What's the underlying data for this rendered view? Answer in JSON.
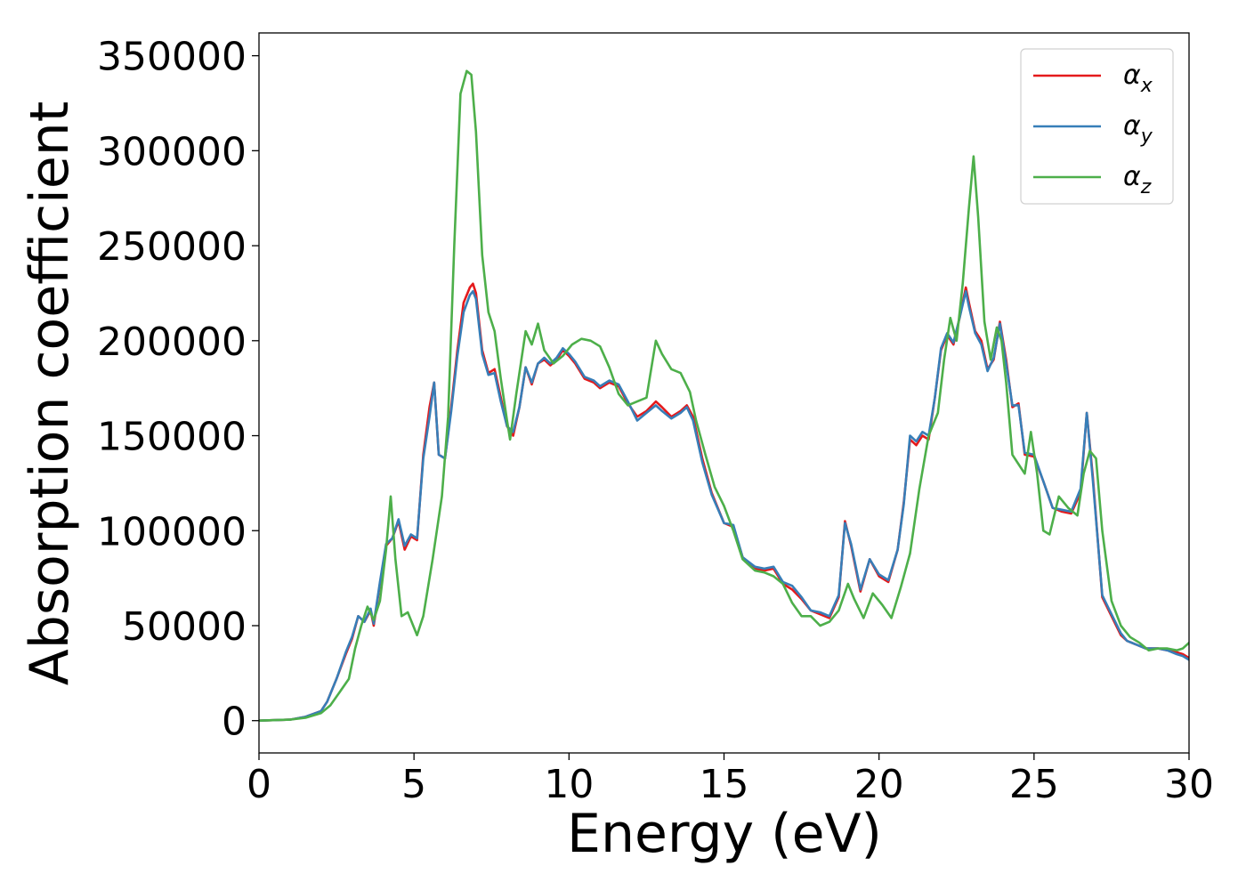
{
  "chart_data": {
    "type": "line",
    "xlabel": "Energy (eV)",
    "ylabel": "Absorption coefficient",
    "xlim": [
      0,
      30
    ],
    "ylim": [
      -17000,
      362000
    ],
    "x_ticks": [
      0,
      5,
      10,
      15,
      20,
      25,
      30
    ],
    "y_ticks": [
      0,
      50000,
      100000,
      150000,
      200000,
      250000,
      300000,
      350000
    ],
    "grid": false,
    "legend_position": "top-right",
    "series": [
      {
        "name": "α",
        "subscript": "x",
        "color": "#e41a1c",
        "x": [
          0,
          1,
          1.5,
          2,
          2.2,
          2.5,
          2.8,
          3,
          3.2,
          3.4,
          3.6,
          3.7,
          3.9,
          4.1,
          4.3,
          4.5,
          4.7,
          4.9,
          5.1,
          5.3,
          5.5,
          5.65,
          5.8,
          6,
          6.2,
          6.4,
          6.6,
          6.8,
          6.9,
          7,
          7.2,
          7.4,
          7.6,
          7.8,
          8,
          8.2,
          8.4,
          8.6,
          8.8,
          9,
          9.2,
          9.4,
          9.6,
          9.8,
          10,
          10.2,
          10.5,
          10.8,
          11,
          11.3,
          11.6,
          11.9,
          12.2,
          12.5,
          12.8,
          13,
          13.3,
          13.6,
          13.8,
          14,
          14.3,
          14.6,
          15,
          15.3,
          15.6,
          16,
          16.3,
          16.6,
          16.9,
          17.2,
          17.5,
          17.8,
          18.1,
          18.4,
          18.7,
          18.9,
          19.1,
          19.4,
          19.7,
          20,
          20.3,
          20.6,
          20.8,
          21,
          21.2,
          21.4,
          21.6,
          21.8,
          22,
          22.2,
          22.4,
          22.6,
          22.8,
          22.9,
          23.1,
          23.3,
          23.5,
          23.7,
          23.9,
          24.1,
          24.3,
          24.5,
          24.7,
          25,
          25.3,
          25.6,
          25.9,
          26.2,
          26.5,
          26.7,
          26.9,
          27.2,
          27.5,
          27.8,
          28,
          28.3,
          28.6,
          29,
          29.3,
          29.6,
          29.8,
          30
        ],
        "y": [
          0,
          500,
          2000,
          5000,
          10000,
          22000,
          35000,
          43000,
          55000,
          52000,
          58000,
          50000,
          72000,
          92000,
          96000,
          105000,
          90000,
          97000,
          95000,
          140000,
          165000,
          178000,
          140000,
          138000,
          165000,
          195000,
          220000,
          228000,
          230000,
          225000,
          195000,
          183000,
          185000,
          170000,
          155000,
          150000,
          165000,
          186000,
          177000,
          188000,
          190000,
          187000,
          190000,
          195000,
          192000,
          188000,
          180000,
          178000,
          175000,
          178000,
          176000,
          167000,
          160000,
          163000,
          168000,
          165000,
          160000,
          163000,
          166000,
          160000,
          138000,
          120000,
          104000,
          102000,
          86000,
          80000,
          79000,
          80000,
          72000,
          69000,
          64000,
          58000,
          56000,
          54000,
          65000,
          105000,
          92000,
          68000,
          85000,
          76000,
          73000,
          90000,
          115000,
          148000,
          145000,
          150000,
          148000,
          170000,
          195000,
          203000,
          198000,
          212000,
          228000,
          220000,
          205000,
          200000,
          185000,
          190000,
          210000,
          190000,
          165000,
          167000,
          140000,
          139000,
          126000,
          112000,
          110000,
          109000,
          120000,
          162000,
          128000,
          65000,
          55000,
          45000,
          42000,
          40000,
          38000,
          38000,
          37000,
          36000,
          35000,
          33000
        ],
        "linewidth": 2
      },
      {
        "name": "α",
        "subscript": "y",
        "color": "#377eb8",
        "x": [
          0,
          1,
          1.5,
          2,
          2.2,
          2.5,
          2.8,
          3,
          3.2,
          3.4,
          3.6,
          3.7,
          3.9,
          4.1,
          4.3,
          4.5,
          4.7,
          4.9,
          5.1,
          5.3,
          5.5,
          5.65,
          5.8,
          6,
          6.2,
          6.4,
          6.6,
          6.8,
          6.9,
          7,
          7.2,
          7.4,
          7.6,
          7.8,
          8,
          8.2,
          8.4,
          8.6,
          8.8,
          9,
          9.2,
          9.4,
          9.6,
          9.8,
          10,
          10.2,
          10.5,
          10.8,
          11,
          11.3,
          11.6,
          11.9,
          12.2,
          12.5,
          12.8,
          13,
          13.3,
          13.6,
          13.8,
          14,
          14.3,
          14.6,
          15,
          15.3,
          15.6,
          16,
          16.3,
          16.6,
          16.9,
          17.2,
          17.5,
          17.8,
          18.1,
          18.4,
          18.7,
          18.9,
          19.1,
          19.4,
          19.7,
          20,
          20.3,
          20.6,
          20.8,
          21,
          21.2,
          21.4,
          21.6,
          21.8,
          22,
          22.2,
          22.4,
          22.6,
          22.8,
          22.9,
          23.1,
          23.3,
          23.5,
          23.7,
          23.9,
          24.1,
          24.3,
          24.5,
          24.7,
          25,
          25.3,
          25.6,
          25.9,
          26.2,
          26.5,
          26.7,
          26.9,
          27.2,
          27.5,
          27.8,
          28,
          28.3,
          28.6,
          29,
          29.3,
          29.6,
          29.8,
          30
        ],
        "y": [
          0,
          500,
          2000,
          5000,
          10000,
          22000,
          36000,
          44000,
          55000,
          52000,
          59000,
          51000,
          73000,
          93000,
          96000,
          106000,
          92000,
          98000,
          96000,
          138000,
          160000,
          178000,
          140000,
          138000,
          163000,
          192000,
          215000,
          224000,
          226000,
          222000,
          193000,
          182000,
          183000,
          168000,
          155000,
          152000,
          165000,
          186000,
          178000,
          188000,
          191000,
          188000,
          191000,
          196000,
          193000,
          189000,
          181000,
          179000,
          176000,
          179000,
          177000,
          168000,
          158000,
          162000,
          166000,
          163000,
          159000,
          162000,
          165000,
          158000,
          136000,
          119000,
          104000,
          103000,
          86000,
          81000,
          80000,
          81000,
          73000,
          71000,
          65000,
          58000,
          57000,
          55000,
          66000,
          104000,
          93000,
          69000,
          85000,
          77000,
          74000,
          90000,
          114000,
          150000,
          147000,
          152000,
          150000,
          170000,
          196000,
          204000,
          199000,
          212000,
          226000,
          218000,
          204000,
          198000,
          184000,
          191000,
          209000,
          188000,
          166000,
          166000,
          141000,
          140000,
          126000,
          112000,
          111000,
          110000,
          122000,
          162000,
          126000,
          66000,
          56000,
          46000,
          42000,
          40000,
          38000,
          38000,
          37000,
          35000,
          34000,
          32000
        ],
        "linewidth": 2
      },
      {
        "name": "α",
        "subscript": "z",
        "color": "#4daf4a",
        "x": [
          0,
          1,
          1.5,
          2,
          2.3,
          2.6,
          2.9,
          3.1,
          3.3,
          3.5,
          3.7,
          3.9,
          4.1,
          4.25,
          4.4,
          4.6,
          4.8,
          5.1,
          5.3,
          5.6,
          5.9,
          6.1,
          6.3,
          6.5,
          6.7,
          6.85,
          7,
          7.2,
          7.4,
          7.6,
          7.8,
          8,
          8.1,
          8.3,
          8.6,
          8.8,
          9,
          9.2,
          9.5,
          9.8,
          10.1,
          10.4,
          10.7,
          11,
          11.3,
          11.6,
          11.9,
          12.2,
          12.5,
          12.8,
          13,
          13.3,
          13.6,
          13.9,
          14.1,
          14.4,
          14.7,
          15,
          15.3,
          15.6,
          16,
          16.3,
          16.6,
          16.9,
          17.2,
          17.5,
          17.8,
          18.1,
          18.4,
          18.7,
          19,
          19.2,
          19.5,
          19.8,
          20.1,
          20.4,
          20.7,
          21,
          21.3,
          21.6,
          21.9,
          22.1,
          22.3,
          22.5,
          22.7,
          22.9,
          23.05,
          23.2,
          23.4,
          23.6,
          23.8,
          23.95,
          24.1,
          24.3,
          24.5,
          24.7,
          24.9,
          25.1,
          25.3,
          25.5,
          25.8,
          26.1,
          26.4,
          26.6,
          26.8,
          27,
          27.2,
          27.5,
          27.8,
          28.1,
          28.4,
          28.7,
          29,
          29.3,
          29.6,
          29.8,
          30
        ],
        "y": [
          0,
          500,
          1500,
          4000,
          8000,
          15000,
          22000,
          38000,
          50000,
          60000,
          53000,
          63000,
          90000,
          118000,
          85000,
          55000,
          57000,
          45000,
          55000,
          85000,
          118000,
          160000,
          250000,
          330000,
          342000,
          340000,
          310000,
          245000,
          215000,
          205000,
          180000,
          158000,
          148000,
          172000,
          205000,
          198000,
          209000,
          195000,
          188000,
          192000,
          198000,
          201000,
          200000,
          197000,
          186000,
          172000,
          166000,
          168000,
          170000,
          200000,
          193000,
          185000,
          183000,
          173000,
          158000,
          140000,
          123000,
          113000,
          100000,
          85000,
          79000,
          78000,
          76000,
          72000,
          62000,
          55000,
          55000,
          50000,
          52000,
          58000,
          72000,
          64000,
          54000,
          67000,
          61000,
          54000,
          70000,
          88000,
          122000,
          150000,
          162000,
          190000,
          212000,
          200000,
          230000,
          270000,
          297000,
          265000,
          210000,
          190000,
          207000,
          200000,
          178000,
          140000,
          135000,
          130000,
          152000,
          130000,
          100000,
          98000,
          118000,
          112000,
          108000,
          130000,
          142000,
          138000,
          100000,
          63000,
          50000,
          44000,
          41000,
          37000,
          38000,
          38000,
          37000,
          38000,
          41000
        ],
        "linewidth": 2
      }
    ]
  }
}
